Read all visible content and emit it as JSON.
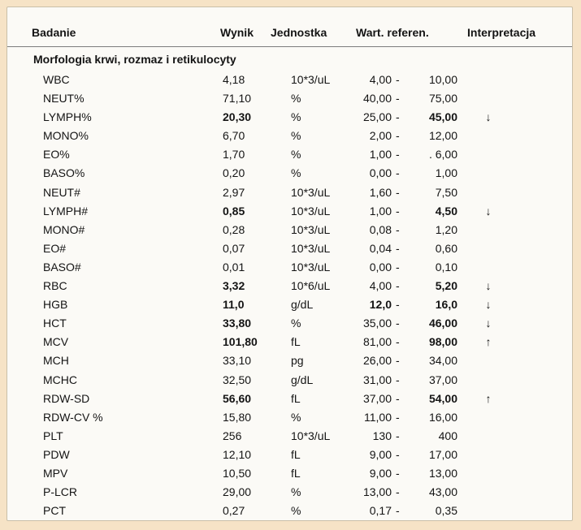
{
  "header": {
    "test": "Badanie",
    "result": "Wynik",
    "unit": "Jednostka",
    "reference": "Wart. referen.",
    "interpretation": "Interpretacja"
  },
  "section": {
    "title": "Morfologia krwi, rozmaz i retikulocyty"
  },
  "rows": [
    {
      "name": "WBC",
      "value": "4,18",
      "unit": "10*3/uL",
      "low": "4,00",
      "sep": "-",
      "high": "10,00",
      "flag": "",
      "bold": false
    },
    {
      "name": "NEUT%",
      "value": "71,10",
      "unit": "%",
      "low": "40,00",
      "sep": "-",
      "high": "75,00",
      "flag": "",
      "bold": false
    },
    {
      "name": "LYMPH%",
      "value": "20,30",
      "unit": "%",
      "low": "25,00",
      "sep": "-",
      "high": "45,00",
      "flag": "↓",
      "bold": true
    },
    {
      "name": "MONO%",
      "value": "6,70",
      "unit": "%",
      "low": "2,00",
      "sep": "-",
      "high": "12,00",
      "flag": "",
      "bold": false
    },
    {
      "name": "EO%",
      "value": "1,70",
      "unit": "%",
      "low": "1,00",
      "sep": "-",
      "high": ". 6,00",
      "flag": "",
      "bold": false
    },
    {
      "name": "BASO%",
      "value": "0,20",
      "unit": "%",
      "low": "0,00",
      "sep": "-",
      "high": "1,00",
      "flag": "",
      "bold": false
    },
    {
      "name": "NEUT#",
      "value": "2,97",
      "unit": "10*3/uL",
      "low": "1,60",
      "sep": "-",
      "high": "7,50",
      "flag": "",
      "bold": false
    },
    {
      "name": "LYMPH#",
      "value": "0,85",
      "unit": "10*3/uL",
      "low": "1,00",
      "sep": "-",
      "high": "4,50",
      "flag": "↓",
      "bold": true
    },
    {
      "name": "MONO#",
      "value": "0,28",
      "unit": "10*3/uL",
      "low": "0,08",
      "sep": "-",
      "high": "1,20",
      "flag": "",
      "bold": false
    },
    {
      "name": "EO#",
      "value": "0,07",
      "unit": "10*3/uL",
      "low": "0,04",
      "sep": "-",
      "high": "0,60",
      "flag": "",
      "bold": false
    },
    {
      "name": "BASO#",
      "value": "0,01",
      "unit": "10*3/uL",
      "low": "0,00",
      "sep": "-",
      "high": "0,10",
      "flag": "",
      "bold": false
    },
    {
      "name": "RBC",
      "value": "3,32",
      "unit": "10*6/uL",
      "low": "4,00",
      "sep": "-",
      "high": "5,20",
      "flag": "↓",
      "bold": true
    },
    {
      "name": "HGB",
      "value": "11,0",
      "unit": "g/dL",
      "low": "12,0",
      "sep": "-",
      "high": "16,0",
      "flag": "↓",
      "bold": true
    },
    {
      "name": "HCT",
      "value": "33,80",
      "unit": "%",
      "low": "35,00",
      "sep": "-",
      "high": "46,00",
      "flag": "↓",
      "bold": true
    },
    {
      "name": "MCV",
      "value": "101,80",
      "unit": "fL",
      "low": "81,00",
      "sep": "-",
      "high": "98,00",
      "flag": "↑",
      "bold": true
    },
    {
      "name": "MCH",
      "value": "33,10",
      "unit": "pg",
      "low": "26,00",
      "sep": "-",
      "high": "34,00",
      "flag": "",
      "bold": false
    },
    {
      "name": "MCHC",
      "value": "32,50",
      "unit": "g/dL",
      "low": "31,00",
      "sep": "-",
      "high": "37,00",
      "flag": "",
      "bold": false
    },
    {
      "name": "RDW-SD",
      "value": "56,60",
      "unit": "fL",
      "low": "37,00",
      "sep": "-",
      "high": "54,00",
      "flag": "↑",
      "bold": true
    },
    {
      "name": "RDW-CV %",
      "value": "15,80",
      "unit": "%",
      "low": "11,00",
      "sep": "-",
      "high": "16,00",
      "flag": "",
      "bold": false
    },
    {
      "name": "PLT",
      "value": "256",
      "unit": "10*3/uL",
      "low": "130",
      "sep": "-",
      "high": "400",
      "flag": "",
      "bold": false
    },
    {
      "name": "PDW",
      "value": "12,10",
      "unit": "fL",
      "low": "9,00",
      "sep": "-",
      "high": "17,00",
      "flag": "",
      "bold": false
    },
    {
      "name": "MPV",
      "value": "10,50",
      "unit": "fL",
      "low": "9,00",
      "sep": "-",
      "high": "13,00",
      "flag": "",
      "bold": false
    },
    {
      "name": "P-LCR",
      "value": "29,00",
      "unit": "%",
      "low": "13,00",
      "sep": "-",
      "high": "43,00",
      "flag": "",
      "bold": false
    },
    {
      "name": "PCT",
      "value": "0,27",
      "unit": "%",
      "low": "0,17",
      "sep": "-",
      "high": "0,35",
      "flag": "",
      "bold": false
    }
  ],
  "colors": {
    "background": "#f6e3c6",
    "paper": "#fbfaf6",
    "text": "#141414"
  }
}
